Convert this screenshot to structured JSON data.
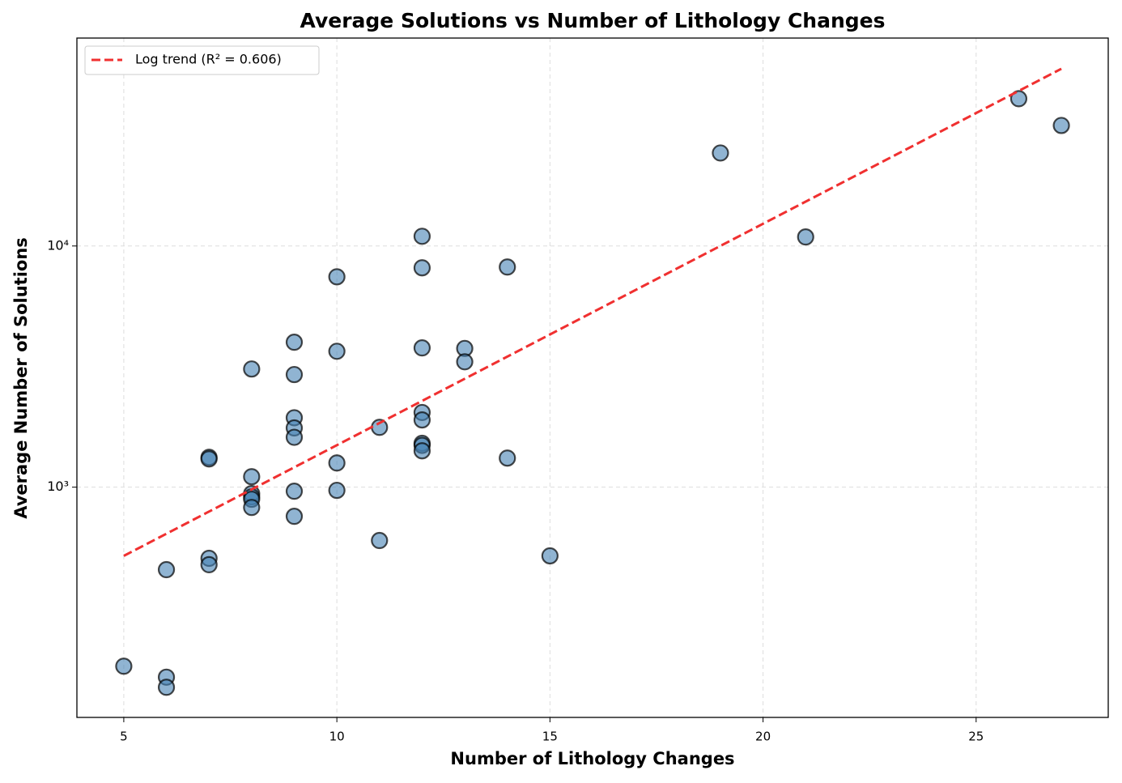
{
  "chart_data": {
    "type": "scatter",
    "title": "Average Solutions vs Number of Lithology Changes",
    "x_label": "Number of Lithology Changes",
    "y_label": "Average Number of Solutions",
    "xlim": [
      3.9,
      28.1
    ],
    "ylim": [
      111,
      72800
    ],
    "y_scale": "log",
    "xticks": [
      5,
      10,
      15,
      20,
      25
    ],
    "yticks": [
      {
        "value": 1000,
        "label": "10³"
      },
      {
        "value": 10000,
        "label": "10⁴"
      }
    ],
    "grid": true,
    "legend": "upper left",
    "series": [
      {
        "type": "scatter",
        "color": "#4682b4",
        "x": [
          5,
          6,
          6,
          6,
          7,
          7,
          7,
          7,
          8,
          8,
          8,
          8,
          8,
          8,
          9,
          9,
          9,
          9,
          9,
          9,
          9,
          10,
          10,
          10,
          10,
          11,
          11,
          12,
          12,
          12,
          12,
          12,
          12,
          12,
          12,
          13,
          13,
          14,
          14,
          15,
          19,
          21,
          26,
          27
        ],
        "values": [
          181,
          163,
          148,
          455,
          507,
          477,
          1330,
          1310,
          3090,
          1105,
          940,
          912,
          891,
          824,
          3990,
          2930,
          1940,
          1760,
          1610,
          962,
          757,
          7450,
          3660,
          1260,
          970,
          1770,
          601,
          10970,
          8120,
          3780,
          2040,
          1900,
          1520,
          1490,
          1415,
          3760,
          3310,
          8180,
          1320,
          519,
          24300,
          10900,
          40800,
          31600
        ]
      },
      {
        "type": "line",
        "name": "Log trend (R² = 0.606)",
        "color": "#f03030",
        "x": [
          5,
          27
        ],
        "values": [
          519,
          54300
        ]
      }
    ]
  }
}
